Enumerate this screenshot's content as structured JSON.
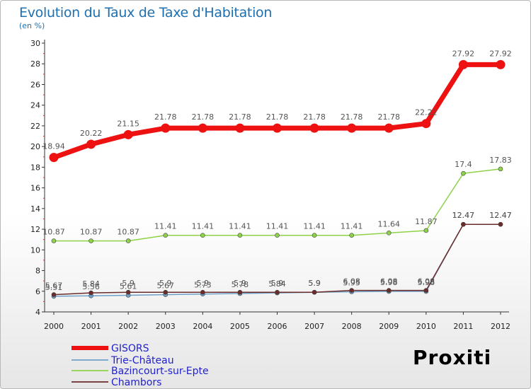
{
  "title": "Evolution du Taux de Taxe d'Habitation",
  "subtitle": "(en %)",
  "logo": {
    "text": "Proxiti"
  },
  "chart_data": {
    "type": "line",
    "x": [
      "2000",
      "2001",
      "2002",
      "2003",
      "2004",
      "2005",
      "2006",
      "2007",
      "2008",
      "2009",
      "2010",
      "2011",
      "2012"
    ],
    "ylim": [
      4,
      30
    ],
    "yticks": [
      4,
      6,
      8,
      10,
      12,
      14,
      16,
      18,
      20,
      22,
      24,
      26,
      28,
      30
    ],
    "grid": false,
    "legend_position": "bottom-left",
    "series": [
      {
        "name": "GISORS",
        "color": "#ee1111",
        "values": [
          18.94,
          20.22,
          21.15,
          21.78,
          21.78,
          21.78,
          21.78,
          21.78,
          21.78,
          21.78,
          22.22,
          27.92,
          27.92
        ],
        "labels": [
          "18.94",
          "20.22",
          "21.15",
          "21.78",
          "21.78",
          "21.78",
          "21.78",
          "21.78",
          "21.78",
          "21.78",
          "22.22",
          "27.92",
          "27.92"
        ]
      },
      {
        "name": "Trie-Château",
        "color": "#6fa0c8",
        "values": [
          5.51,
          5.56,
          5.61,
          5.67,
          5.73,
          5.78,
          5.84,
          5.9,
          5.95,
          5.98,
          5.98,
          12.47,
          12.47
        ],
        "labels": [
          "5.51",
          "5.56",
          "5.61",
          "5.67",
          "5.73",
          "5.78",
          "5.84",
          "5.9",
          "5.95",
          "5.98",
          "5.98",
          "12.47",
          "12.47"
        ]
      },
      {
        "name": "Bazincourt-sur-Epte",
        "color": "#8ed24a",
        "values": [
          10.87,
          10.87,
          10.87,
          11.41,
          11.41,
          11.41,
          11.41,
          11.41,
          11.41,
          11.64,
          11.87,
          17.4,
          17.83
        ],
        "labels": [
          "10.87",
          "10.87",
          "10.87",
          "11.41",
          "11.41",
          "11.41",
          "11.41",
          "11.41",
          "11.41",
          "11.64",
          "11.87",
          "17.4",
          "17.83"
        ]
      },
      {
        "name": "Chambors",
        "color": "#6b2b2b",
        "values": [
          5.67,
          5.84,
          5.9,
          5.9,
          5.9,
          5.9,
          5.9,
          5.9,
          6.08,
          6.08,
          6.08,
          12.47,
          12.47
        ],
        "labels": [
          "5.67",
          "5.84",
          "5.9",
          "5.9",
          "5.9",
          "5.9",
          "5.9",
          "5.9",
          "6.08",
          "6.08",
          "6.08",
          "12.47",
          "12.47"
        ]
      }
    ]
  }
}
